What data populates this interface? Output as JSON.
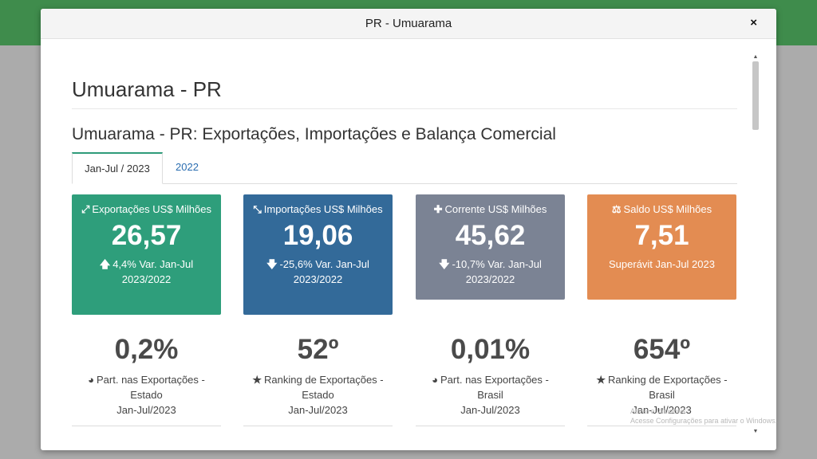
{
  "modal": {
    "title": "PR - Umuarama",
    "close": "×",
    "city_title": "Umuarama - PR",
    "section_title": "Umuarama - PR: Exportações, Importações e Balança Comercial"
  },
  "tabs": [
    {
      "label": "Jan-Jul / 2023",
      "active": true
    },
    {
      "label": "2022",
      "active": false
    }
  ],
  "cards": [
    {
      "icon": "expand-arrows-icon",
      "glyph": "⤢",
      "label": "Exportações US$ Milhões",
      "value": "26,57",
      "var_glyph": "🡅",
      "variation": "4,4% Var. Jan-Jul 2023/2022",
      "color": "#2e9e7b"
    },
    {
      "icon": "compress-arrows-icon",
      "glyph": "⤡",
      "label": "Importações US$ Milhões",
      "value": "19,06",
      "var_glyph": "🡇",
      "variation": "-25,6% Var. Jan-Jul 2023/2022",
      "color": "#336a99"
    },
    {
      "icon": "plus-icon",
      "glyph": "✚",
      "label": "Corrente US$ Milhões",
      "value": "45,62",
      "var_glyph": "🡇",
      "variation": "-10,7% Var. Jan-Jul 2023/2022",
      "color": "#7b8394"
    },
    {
      "icon": "balance-scale-icon",
      "glyph": "⚖",
      "label": "Saldo US$ Milhões",
      "value": "7,51",
      "var_glyph": "",
      "variation": "Superávit Jan-Jul 2023",
      "color": "#e38c52"
    }
  ],
  "stats": [
    {
      "icon": "pie-chart-icon",
      "glyph": "◕",
      "value": "0,2%",
      "label": "Part. nas Exportações - Estado",
      "period": "Jan-Jul/2023"
    },
    {
      "icon": "star-icon",
      "glyph": "★",
      "value": "52º",
      "label": "Ranking de Exportações - Estado",
      "period": "Jan-Jul/2023"
    },
    {
      "icon": "pie-chart-icon",
      "glyph": "◕",
      "value": "0,01%",
      "label": "Part. nas Exportações - Brasil",
      "period": "Jan-Jul/2023"
    },
    {
      "icon": "star-icon",
      "glyph": "★",
      "value": "654º",
      "label": "Ranking de Exportações - Brasil",
      "period": "Jan-Jul/2023"
    }
  ],
  "watermark": {
    "line1": "Ativar o Windows",
    "line2": "Acesse Configurações para ativar o Windows."
  }
}
